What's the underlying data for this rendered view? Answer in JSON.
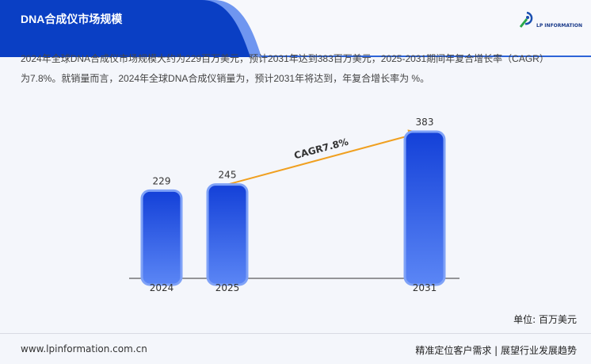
{
  "header": {
    "title": "DNA合成仪市场规模",
    "logo_text": "LP INFORMATION"
  },
  "description": [
    "2024年全球DNA合成仪市场规模大约为229百万美元，预计2031年达到383百万美元，2025-2031期间年复合增长率（CAGR）",
    "为7.8%。就销量而言，2024年全球DNA合成仪销量为，预计2031年将达到，年复合增长率为 %。"
  ],
  "chart_data": {
    "type": "bar",
    "categories": [
      "2024",
      "2025",
      "2031"
    ],
    "values": [
      229,
      245,
      383
    ],
    "ylim": [
      0,
      383
    ],
    "annotation": "CAGR7.8%",
    "bar_color_top": "#1340d8",
    "bar_color_bottom": "#5b86f5",
    "arrow_color": "#f0a020"
  },
  "unit": "单位: 百万美元",
  "footer": {
    "url": "www.lpinformation.com.cn",
    "slogan": "精准定位客户需求 | 展望行业发展趋势"
  }
}
